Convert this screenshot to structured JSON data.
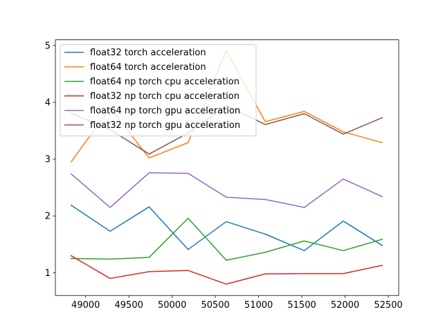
{
  "chart_data": {
    "type": "line",
    "title": "",
    "xlabel": "",
    "ylabel": "",
    "x": [
      48832,
      49283,
      49734,
      50185,
      50626,
      51077,
      51528,
      51979,
      52430
    ],
    "xlim": [
      48650,
      52620
    ],
    "ylim": [
      0.6,
      5.1
    ],
    "xticks": [
      49000,
      49500,
      50000,
      50500,
      51000,
      51500,
      52000,
      52500
    ],
    "yticks": [
      1,
      2,
      3,
      4,
      5
    ],
    "grid": false,
    "legend_position": "upper-left",
    "series": [
      {
        "name": "float32 torch acceleration",
        "color": "#1f77b4",
        "values": [
          2.19,
          1.73,
          2.16,
          1.41,
          1.9,
          1.68,
          1.39,
          1.91,
          1.48
        ]
      },
      {
        "name": "float64 torch acceleration",
        "color": "#ff7f0e",
        "values": [
          2.95,
          3.9,
          3.02,
          3.29,
          4.91,
          3.66,
          3.84,
          3.48,
          3.29
        ]
      },
      {
        "name": "float64 np torch cpu acceleration",
        "color": "#2ca02c",
        "values": [
          1.25,
          1.24,
          1.27,
          1.96,
          1.22,
          1.36,
          1.56,
          1.39,
          1.59
        ]
      },
      {
        "name": "float32 np torch cpu acceleration",
        "color": "#d62728",
        "values": [
          1.3,
          0.9,
          1.02,
          1.04,
          0.8,
          0.98,
          0.985,
          0.985,
          1.13
        ]
      },
      {
        "name": "float64 np torch gpu acceleration",
        "color": "#9467bd",
        "values": [
          2.74,
          2.15,
          2.76,
          2.75,
          2.33,
          2.29,
          2.15,
          2.65,
          2.34
        ]
      },
      {
        "name": "float32 np torch gpu acceleration",
        "color": "#8c564b",
        "values": [
          3.81,
          3.52,
          3.09,
          3.46,
          3.94,
          3.61,
          3.8,
          3.44,
          3.73
        ]
      }
    ]
  }
}
